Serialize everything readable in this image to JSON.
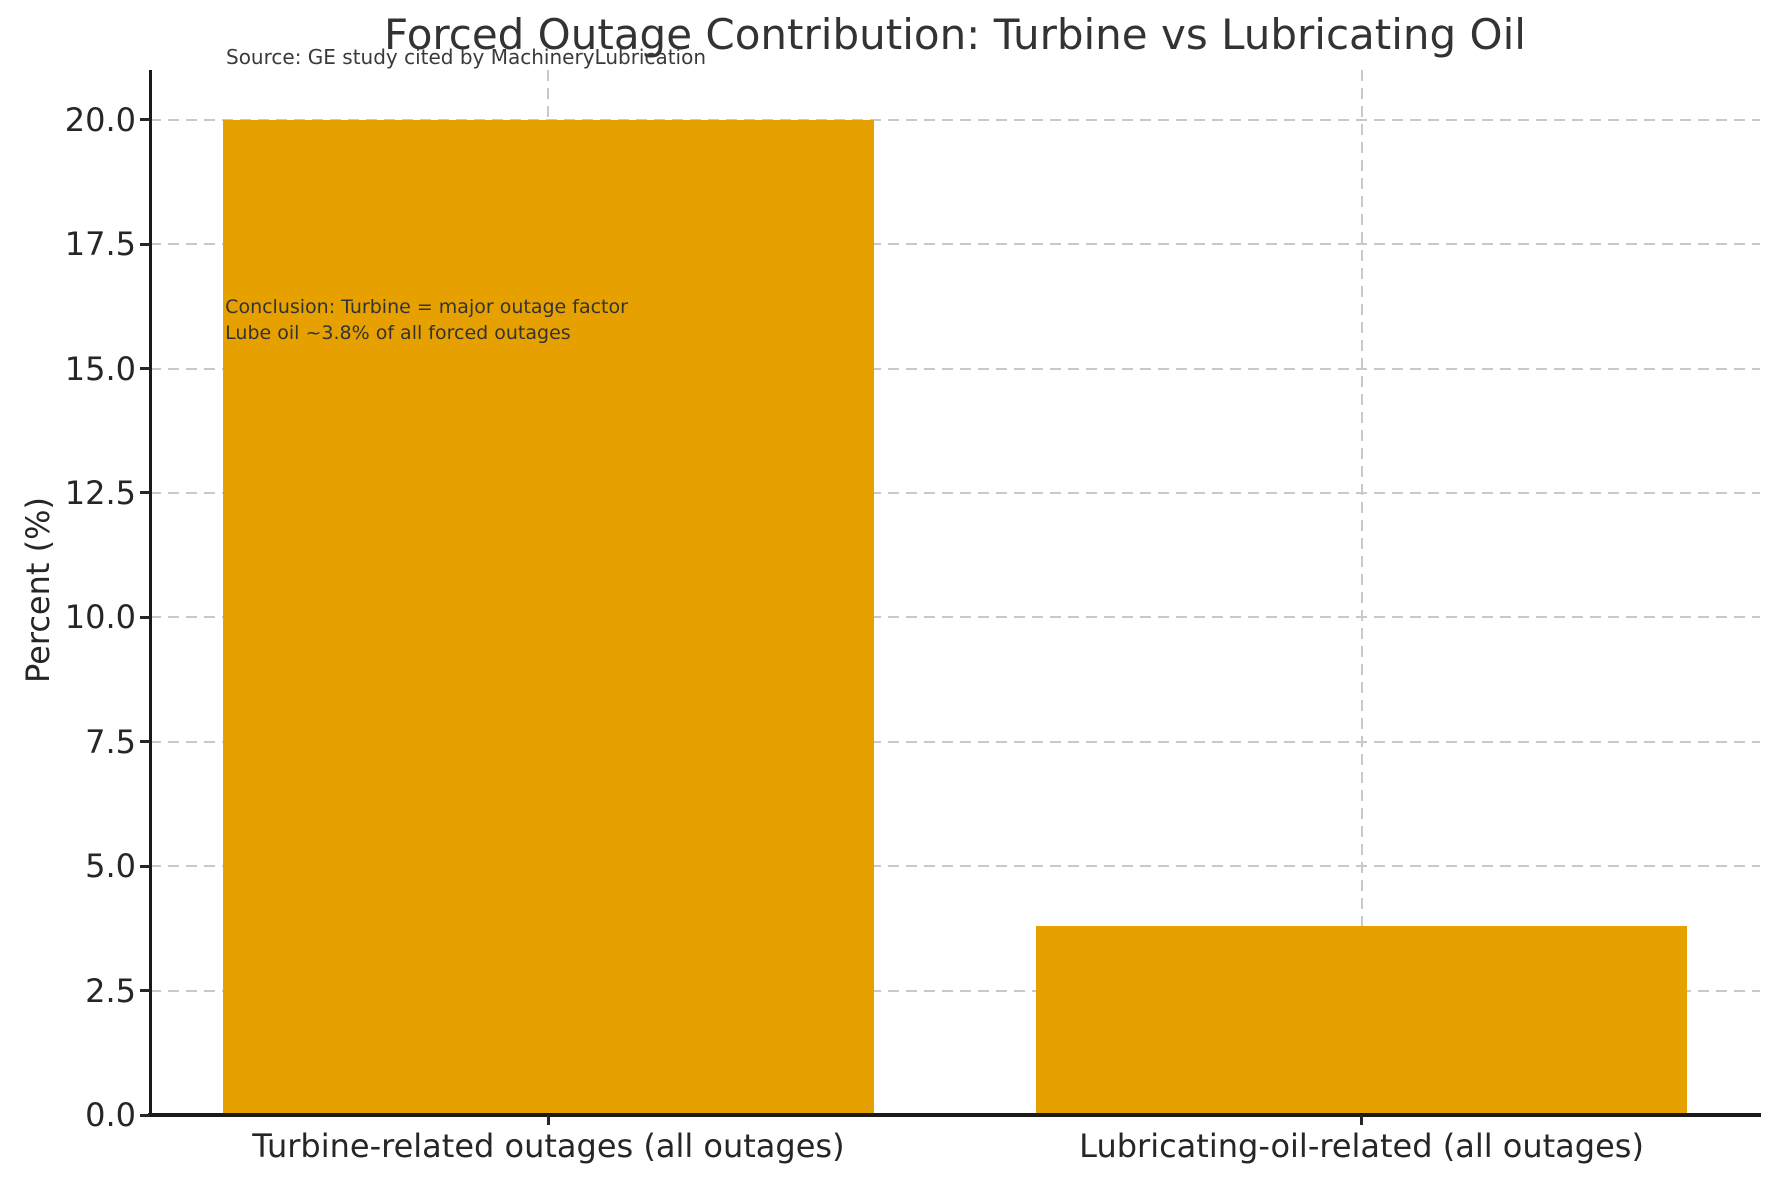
{
  "figure": {
    "title": "Forced Outage Contribution: Turbine vs Lubricating Oil",
    "source_note": "Source: GE study cited by MachineryLubrication"
  },
  "chart_data": {
    "type": "bar",
    "title": "Forced Outage Contribution: Turbine vs Lubricating Oil",
    "source": "Source: GE study cited by MachineryLubrication",
    "categories": [
      "Turbine-related outages (all outages)",
      "Lubricating-oil-related (all outages)"
    ],
    "values": [
      20.0,
      3.8
    ],
    "xlabel": "",
    "ylabel": "Percent (%)",
    "ylim": [
      0,
      21
    ],
    "xlim": [
      -0.49,
      1.49
    ],
    "yticks": [
      0.0,
      2.5,
      5.0,
      7.5,
      10.0,
      12.5,
      15.0,
      17.5,
      20.0
    ],
    "ytick_labels": [
      "0.0",
      "2.5",
      "5.0",
      "7.5",
      "10.0",
      "12.5",
      "15.0",
      "17.5",
      "20.0"
    ],
    "bar_width": 0.8,
    "bar_color": "#E6A100",
    "grid": true,
    "grid_color": "#c9c9c9",
    "legend": null,
    "annotation": {
      "lines": [
        "Conclusion: Turbine = major outage factor",
        "Lube oil ~3.8% of all forced outages"
      ],
      "x": -0.4,
      "y": 16.5
    }
  }
}
